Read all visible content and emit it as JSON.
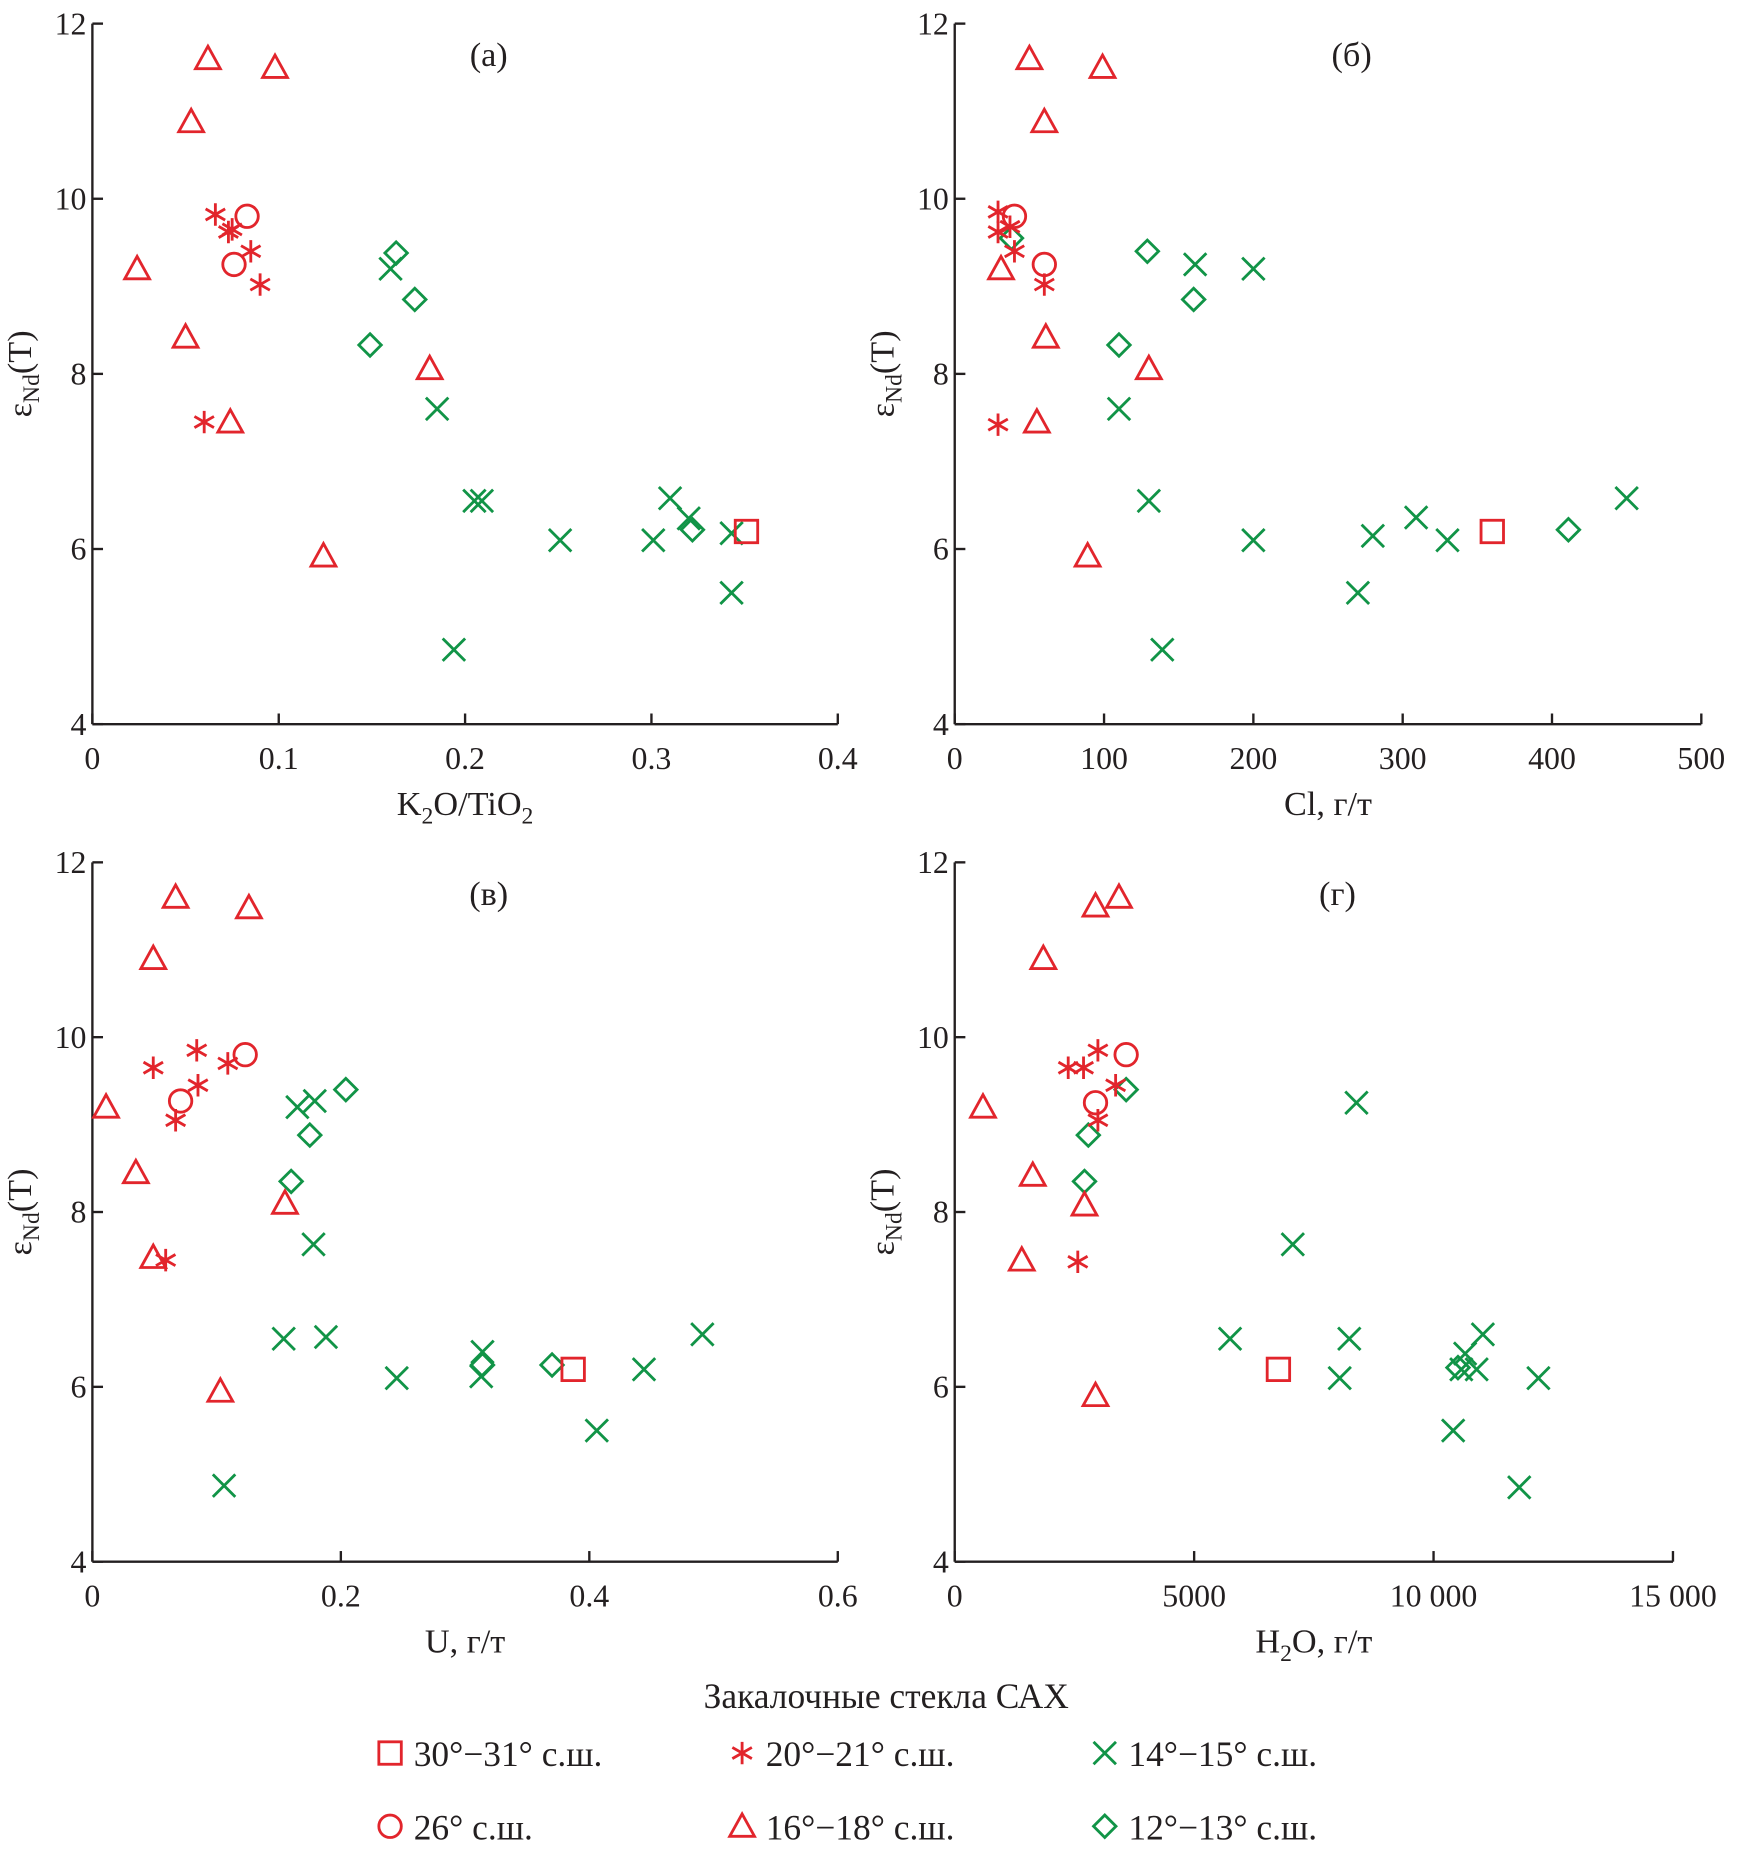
{
  "colors": {
    "red": "#e2252c",
    "green": "#119447",
    "axis": "#231f20"
  },
  "legend": {
    "title": "Закалочные стекла САХ",
    "items": [
      {
        "key": "s30",
        "label": "30°−31° с.ш.",
        "marker": "square",
        "color": "red"
      },
      {
        "key": "s20",
        "label": "20°−21° с.ш.",
        "marker": "asterisk",
        "color": "red"
      },
      {
        "key": "s14",
        "label": "14°−15° с.ш.",
        "marker": "x",
        "color": "green"
      },
      {
        "key": "s26",
        "label": "26° с.ш.",
        "marker": "circle",
        "color": "red"
      },
      {
        "key": "s16",
        "label": "16°−18° с.ш.",
        "marker": "triangle",
        "color": "red"
      },
      {
        "key": "s12",
        "label": "12°−13° с.ш.",
        "marker": "diamond",
        "color": "green"
      }
    ]
  },
  "chart_data": [
    {
      "type": "scatter",
      "panel_label": "(а)",
      "xlabel": "K2O/TiO2",
      "xlabel_parts": [
        "K",
        "2",
        "O/TiO",
        "2"
      ],
      "ylabel": "εNd(T)",
      "xlim": [
        0,
        0.4
      ],
      "ylim": [
        4,
        12
      ],
      "xticks": [
        "0",
        "0.1",
        "0.2",
        "0.3",
        "0.4"
      ],
      "xtick_values": [
        0,
        0.1,
        0.2,
        0.3,
        0.4
      ],
      "yticks": [
        "4",
        "6",
        "8",
        "10",
        "12"
      ],
      "ytick_values": [
        4,
        6,
        8,
        10,
        12
      ],
      "series": {
        "s30": [
          [
            0.351,
            6.2
          ]
        ],
        "s26": [
          [
            0.083,
            9.8
          ],
          [
            0.076,
            9.25
          ]
        ],
        "s20": [
          [
            0.066,
            9.82
          ],
          [
            0.073,
            9.62
          ],
          [
            0.075,
            9.65
          ],
          [
            0.085,
            9.4
          ],
          [
            0.09,
            9.02
          ],
          [
            0.06,
            7.45
          ]
        ],
        "s16": [
          [
            0.062,
            11.6
          ],
          [
            0.098,
            11.5
          ],
          [
            0.053,
            10.88
          ],
          [
            0.024,
            9.2
          ],
          [
            0.05,
            8.42
          ],
          [
            0.074,
            7.45
          ],
          [
            0.181,
            8.06
          ],
          [
            0.124,
            5.92
          ]
        ],
        "s14": [
          [
            0.16,
            9.2
          ],
          [
            0.185,
            7.6
          ],
          [
            0.205,
            6.55
          ],
          [
            0.209,
            6.55
          ],
          [
            0.251,
            6.1
          ],
          [
            0.301,
            6.1
          ],
          [
            0.31,
            6.58
          ],
          [
            0.32,
            6.35
          ],
          [
            0.343,
            5.5
          ],
          [
            0.343,
            6.18
          ],
          [
            0.194,
            4.85
          ]
        ],
        "s12": [
          [
            0.149,
            8.33
          ],
          [
            0.163,
            9.38
          ],
          [
            0.173,
            8.85
          ],
          [
            0.322,
            6.22
          ]
        ]
      }
    },
    {
      "type": "scatter",
      "panel_label": "(б)",
      "xlabel": "Cl, г/т",
      "xlabel_parts": [
        "Cl, г/т"
      ],
      "ylabel": "εNd(T)",
      "xlim": [
        0,
        500
      ],
      "ylim": [
        4,
        12
      ],
      "xticks": [
        "0",
        "100",
        "200",
        "300",
        "400",
        "500"
      ],
      "xtick_values": [
        0,
        100,
        200,
        300,
        400,
        500
      ],
      "yticks": [
        "4",
        "6",
        "8",
        "10",
        "12"
      ],
      "ytick_values": [
        4,
        6,
        8,
        10,
        12
      ],
      "series": {
        "s30": [
          [
            360,
            6.2
          ]
        ],
        "s26": [
          [
            40,
            9.8
          ],
          [
            60,
            9.25
          ]
        ],
        "s20": [
          [
            29,
            9.85
          ],
          [
            29,
            9.62
          ],
          [
            37,
            9.68
          ],
          [
            40,
            9.4
          ],
          [
            60,
            9.02
          ],
          [
            29,
            7.42
          ]
        ],
        "s16": [
          [
            50,
            11.6
          ],
          [
            99,
            11.5
          ],
          [
            60,
            10.88
          ],
          [
            31,
            9.2
          ],
          [
            61,
            8.42
          ],
          [
            55,
            7.45
          ],
          [
            130,
            8.06
          ],
          [
            89,
            5.92
          ]
        ],
        "s14": [
          [
            161,
            9.25
          ],
          [
            200,
            9.2
          ],
          [
            110,
            7.6
          ],
          [
            130,
            6.55
          ],
          [
            200,
            6.1
          ],
          [
            280,
            6.15
          ],
          [
            309,
            6.36
          ],
          [
            330,
            6.1
          ],
          [
            270,
            5.5
          ],
          [
            139,
            4.85
          ],
          [
            450,
            6.58
          ]
        ],
        "s12": [
          [
            38,
            9.55
          ],
          [
            129,
            9.4
          ],
          [
            110,
            8.33
          ],
          [
            160,
            8.85
          ],
          [
            411,
            6.22
          ]
        ]
      }
    },
    {
      "type": "scatter",
      "panel_label": "(в)",
      "xlabel": "U, г/т",
      "xlabel_parts": [
        "U, г/т"
      ],
      "ylabel": "εNd(T)",
      "xlim": [
        0,
        0.6
      ],
      "ylim": [
        4,
        12
      ],
      "xticks": [
        "0",
        "0.2",
        "0.4",
        "0.6"
      ],
      "xtick_values": [
        0,
        0.2,
        0.4,
        0.6
      ],
      "yticks": [
        "4",
        "6",
        "8",
        "10",
        "12"
      ],
      "ytick_values": [
        4,
        6,
        8,
        10,
        12
      ],
      "series": {
        "s30": [
          [
            0.387,
            6.2
          ]
        ],
        "s26": [
          [
            0.123,
            9.8
          ],
          [
            0.071,
            9.27
          ]
        ],
        "s20": [
          [
            0.049,
            9.65
          ],
          [
            0.084,
            9.85
          ],
          [
            0.085,
            9.45
          ],
          [
            0.109,
            9.7
          ],
          [
            0.067,
            9.05
          ],
          [
            0.059,
            7.45
          ]
        ],
        "s16": [
          [
            0.067,
            11.6
          ],
          [
            0.126,
            11.48
          ],
          [
            0.049,
            10.9
          ],
          [
            0.011,
            9.2
          ],
          [
            0.035,
            8.45
          ],
          [
            0.049,
            7.48
          ],
          [
            0.155,
            8.1
          ],
          [
            0.103,
            5.95
          ]
        ],
        "s14": [
          [
            0.165,
            9.2
          ],
          [
            0.179,
            9.27
          ],
          [
            0.178,
            7.63
          ],
          [
            0.154,
            6.55
          ],
          [
            0.188,
            6.57
          ],
          [
            0.245,
            6.1
          ],
          [
            0.314,
            6.4
          ],
          [
            0.313,
            6.12
          ],
          [
            0.444,
            6.2
          ],
          [
            0.491,
            6.6
          ],
          [
            0.406,
            5.5
          ],
          [
            0.106,
            4.87
          ]
        ],
        "s12": [
          [
            0.16,
            8.35
          ],
          [
            0.175,
            8.88
          ],
          [
            0.204,
            9.4
          ],
          [
            0.314,
            6.25
          ],
          [
            0.37,
            6.25
          ]
        ]
      }
    },
    {
      "type": "scatter",
      "panel_label": "(г)",
      "xlabel": "H2O, г/т",
      "xlabel_parts": [
        "H",
        "2",
        "O, г/т"
      ],
      "ylabel": "εNd(T)",
      "xlim": [
        0,
        15000
      ],
      "ylim": [
        4,
        12
      ],
      "xticks": [
        "0",
        "5000",
        "10 000",
        "15 000"
      ],
      "xtick_values": [
        0,
        5000,
        10000,
        15000
      ],
      "yticks": [
        "4",
        "6",
        "8",
        "10",
        "12"
      ],
      "ytick_values": [
        4,
        6,
        8,
        10,
        12
      ],
      "series": {
        "s30": [
          [
            6760,
            6.2
          ]
        ],
        "s26": [
          [
            3580,
            9.8
          ],
          [
            2940,
            9.25
          ]
        ],
        "s20": [
          [
            2370,
            9.65
          ],
          [
            2690,
            9.65
          ],
          [
            2990,
            9.85
          ],
          [
            3360,
            9.45
          ],
          [
            2990,
            9.05
          ],
          [
            2570,
            7.43
          ]
        ],
        "s16": [
          [
            590,
            9.2
          ],
          [
            1630,
            8.42
          ],
          [
            1400,
            7.45
          ],
          [
            1850,
            10.9
          ],
          [
            2940,
            11.5
          ],
          [
            3430,
            11.6
          ],
          [
            2710,
            8.08
          ],
          [
            2940,
            5.9
          ]
        ],
        "s14": [
          [
            8390,
            9.25
          ],
          [
            7060,
            7.63
          ],
          [
            5750,
            6.55
          ],
          [
            8240,
            6.55
          ],
          [
            8040,
            6.1
          ],
          [
            10660,
            6.38
          ],
          [
            10900,
            6.2
          ],
          [
            11030,
            6.6
          ],
          [
            12190,
            6.1
          ],
          [
            10410,
            5.5
          ],
          [
            11790,
            4.85
          ],
          [
            10580,
            6.2
          ]
        ],
        "s12": [
          [
            3580,
            9.4
          ],
          [
            2790,
            8.88
          ],
          [
            2710,
            8.35
          ],
          [
            10510,
            6.22
          ]
        ]
      }
    }
  ]
}
